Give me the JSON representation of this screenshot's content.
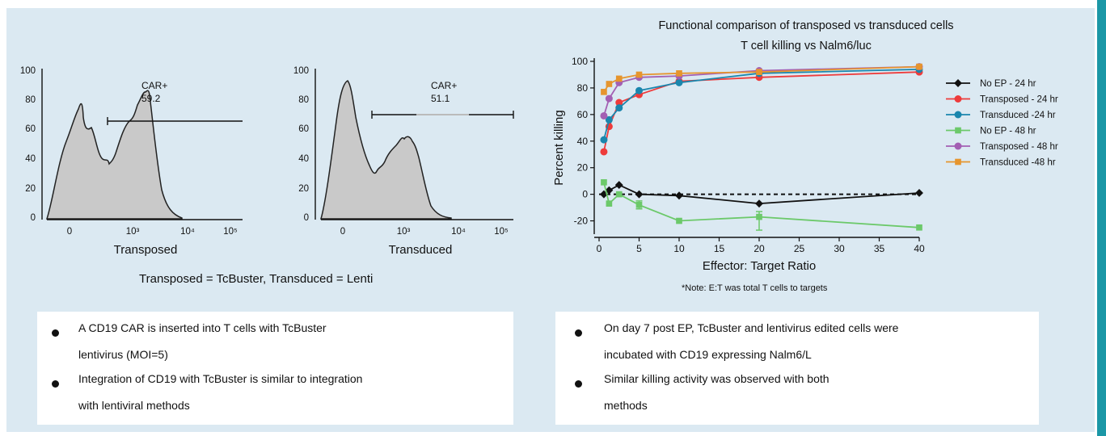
{
  "histograms": [
    {
      "gate_label": "CAR+",
      "gate_value": "59.2",
      "xlabel": "Transposed",
      "yticks": [
        "100",
        "80",
        "60",
        "40",
        "20",
        "0"
      ],
      "xticks": [
        "0",
        "10³",
        "10⁴",
        "10⁵"
      ]
    },
    {
      "gate_label": "CAR+",
      "gate_value": "51.1",
      "xlabel": "Transduced",
      "yticks": [
        "100",
        "80",
        "60",
        "40",
        "20",
        "0"
      ],
      "xticks": [
        "0",
        "10³",
        "10⁴",
        "10⁵"
      ]
    }
  ],
  "left_caption": {
    "part1": "Transposed = TcBuster, Transduced = ",
    "part2": "Lenti"
  },
  "chart_data": {
    "type": "line",
    "title": "Functional comparison of transposed vs transduced cells",
    "subtitle": "T cell killing vs Nalm6/luc",
    "xlabel": "Effector: Target Ratio",
    "ylabel": "Percent killing",
    "xlim": [
      0,
      40
    ],
    "ylim": [
      -30,
      100
    ],
    "xticks": [
      0,
      5,
      10,
      15,
      20,
      25,
      30,
      35,
      40
    ],
    "yticks": [
      100,
      80,
      60,
      40,
      20,
      0,
      -20
    ],
    "legend_position": "right",
    "reference_line_y": 0,
    "series": [
      {
        "name": "No EP - 24 hr",
        "color": "#111111",
        "marker": "diamond",
        "x": [
          0.6,
          1.25,
          2.5,
          5,
          10,
          20,
          40
        ],
        "y": [
          0,
          3,
          7,
          0,
          -1,
          -7,
          1
        ]
      },
      {
        "name": "Transposed - 24 hr",
        "color": "#ee3b3b",
        "marker": "circle",
        "x": [
          0.6,
          1.25,
          2.5,
          5,
          10,
          20,
          40
        ],
        "y": [
          32,
          51,
          69,
          75,
          85,
          88,
          92
        ]
      },
      {
        "name": "Transduced -24 hr",
        "color": "#1a86ad",
        "marker": "circle",
        "x": [
          0.6,
          1.25,
          2.5,
          5,
          10,
          20,
          40
        ],
        "y": [
          41,
          56,
          65,
          78,
          84,
          91,
          94
        ]
      },
      {
        "name": "No EP - 48 hr",
        "color": "#6cc96a",
        "marker": "square",
        "x": [
          0.6,
          1.25,
          2.5,
          5,
          10,
          20,
          40
        ],
        "y": [
          9,
          -7,
          0,
          -8,
          -20,
          -17,
          -25
        ]
      },
      {
        "name": "Transposed - 48 hr",
        "color": "#a35fb3",
        "marker": "circle",
        "x": [
          0.6,
          1.25,
          2.5,
          5,
          10,
          20,
          40
        ],
        "y": [
          59,
          72,
          84,
          88,
          89,
          93,
          96
        ]
      },
      {
        "name": "Transduced -48 hr",
        "color": "#e6952e",
        "marker": "square",
        "x": [
          0.6,
          1.25,
          2.5,
          5,
          10,
          20,
          40
        ],
        "y": [
          77,
          83,
          87,
          90,
          91,
          92,
          96
        ]
      }
    ],
    "note": "*Note: E:T was total T cells to targets"
  },
  "left_box": {
    "items": [
      {
        "line1": "A CD19 CAR is inserted into T cells with TcBuster",
        "line2": "lentivirus (MOI=5)"
      },
      {
        "line1": "Integration of CD19 with TcBuster is similar to integration",
        "line2": "with lentiviral methods"
      }
    ]
  },
  "right_box": {
    "items": [
      {
        "line1": "On day 7 post EP, TcBuster and lentivirus edited cells were",
        "line2": "incubated with CD19 expressing Nalm6/L"
      },
      {
        "line1": "Similar killing activity was observed with both",
        "line2": "methods"
      }
    ]
  },
  "colors": {
    "panel": "#dbe9f2",
    "accent_edge": "#1b97a6",
    "histogram_fill": "#c9c9c9"
  }
}
